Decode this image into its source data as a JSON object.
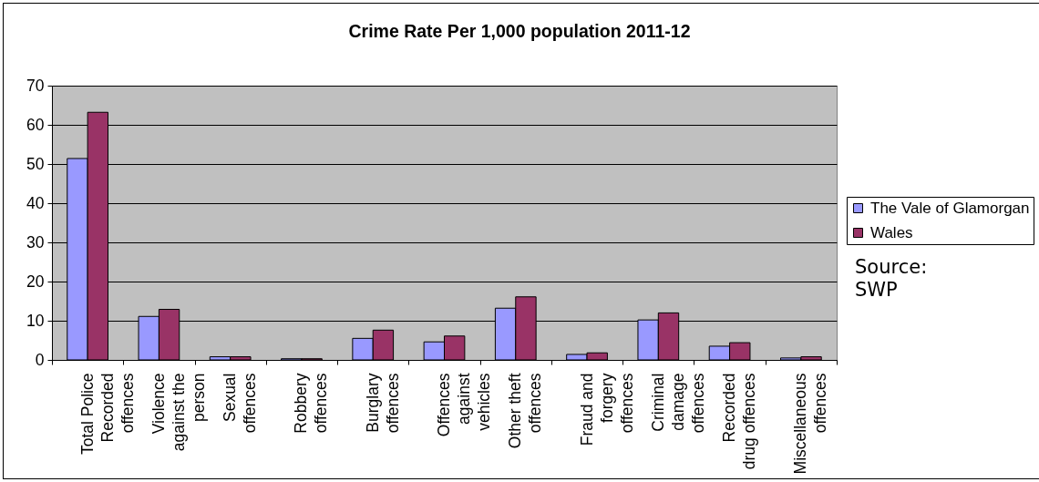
{
  "chart_data": {
    "type": "bar",
    "title": "Crime Rate Per 1,000 population 2011-12",
    "categories": [
      "Total Police Recorded offences",
      "Violence against the person",
      "Sexual offences",
      "Robbery offences",
      "Burglary offences",
      "Offences against vehicles",
      "Other theft offences",
      "Fraud and forgery offences",
      "Criminal damage offences",
      "Recorded drug offences",
      "Miscellaneous offences"
    ],
    "series": [
      {
        "name": "The Vale of Glamorgan",
        "color": "#9999ff",
        "values": [
          51.4,
          11.1,
          0.8,
          0.3,
          5.5,
          4.6,
          13.2,
          1.4,
          10.2,
          3.5,
          0.5
        ]
      },
      {
        "name": "Wales",
        "color": "#993366",
        "values": [
          63.2,
          12.9,
          0.8,
          0.3,
          7.6,
          6.1,
          16.1,
          1.8,
          12.0,
          4.4,
          0.8
        ]
      }
    ],
    "ylim": [
      0,
      70
    ],
    "yticks": [
      0,
      10,
      20,
      30,
      40,
      50,
      60,
      70
    ],
    "grid": "y",
    "legend": "right",
    "annotations": [
      "Source: SWP"
    ]
  }
}
